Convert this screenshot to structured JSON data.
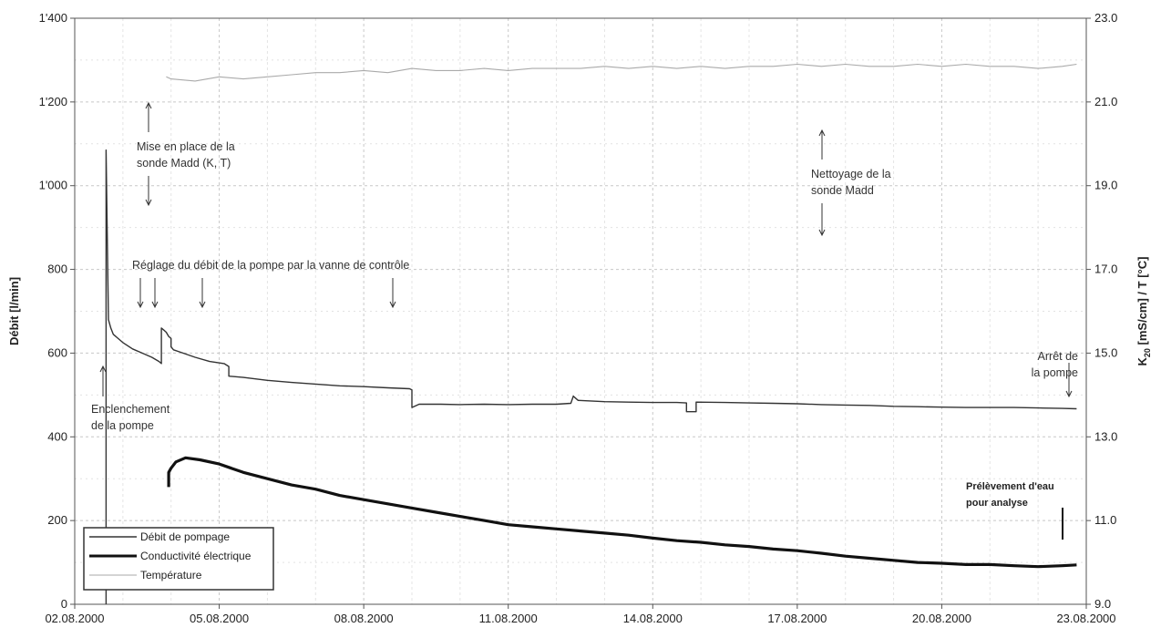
{
  "chart_data": {
    "type": "line",
    "x": {
      "ticks": [
        "02.08.2000",
        "05.08.2000",
        "08.08.2000",
        "11.08.2000",
        "14.08.2000",
        "17.08.2000",
        "20.08.2000",
        "23.08.2000"
      ],
      "tick_values": [
        0,
        3,
        6,
        9,
        12,
        15,
        18,
        21
      ],
      "range": [
        0,
        21
      ],
      "unit": "days"
    },
    "y_left": {
      "label": "Débit [l/min]",
      "range": [
        0,
        1400
      ],
      "ticks": [
        "0",
        "200",
        "400",
        "600",
        "800",
        "1'000",
        "1'200",
        "1'400"
      ],
      "tick_values": [
        0,
        200,
        400,
        600,
        800,
        1000,
        1200,
        1400
      ]
    },
    "y_right": {
      "label_main": "K",
      "label_sub": "20",
      "label_rest": " [mS/cm]  /  T [°C]",
      "range": [
        9,
        23
      ],
      "ticks": [
        "9.0",
        "11.0",
        "13.0",
        "15.0",
        "17.0",
        "19.0",
        "21.0",
        "23.0"
      ],
      "tick_values": [
        9,
        11,
        13,
        15,
        17,
        19,
        21,
        23
      ]
    },
    "grid": true,
    "series": [
      {
        "name": "Débit de pompage",
        "axis": "left",
        "color": "#333333",
        "points": [
          [
            0.65,
            0
          ],
          [
            0.65,
            1085
          ],
          [
            0.7,
            680
          ],
          [
            0.75,
            660
          ],
          [
            0.8,
            645
          ],
          [
            1.0,
            625
          ],
          [
            1.2,
            610
          ],
          [
            1.4,
            600
          ],
          [
            1.6,
            590
          ],
          [
            1.75,
            580
          ],
          [
            1.8,
            575
          ],
          [
            1.8,
            660
          ],
          [
            1.85,
            655
          ],
          [
            1.9,
            650
          ],
          [
            1.95,
            640
          ],
          [
            2.0,
            635
          ],
          [
            2.0,
            615
          ],
          [
            2.05,
            608
          ],
          [
            2.2,
            602
          ],
          [
            2.5,
            590
          ],
          [
            2.8,
            580
          ],
          [
            3.1,
            575
          ],
          [
            3.2,
            568
          ],
          [
            3.2,
            545
          ],
          [
            3.5,
            542
          ],
          [
            4,
            535
          ],
          [
            4.5,
            530
          ],
          [
            5,
            526
          ],
          [
            5.5,
            522
          ],
          [
            6,
            520
          ],
          [
            6.5,
            517
          ],
          [
            6.95,
            515
          ],
          [
            7.0,
            512
          ],
          [
            7.0,
            470
          ],
          [
            7.15,
            478
          ],
          [
            7.6,
            478
          ],
          [
            8,
            477
          ],
          [
            8.5,
            478
          ],
          [
            9,
            477
          ],
          [
            9.5,
            478
          ],
          [
            10,
            478
          ],
          [
            10.3,
            480
          ],
          [
            10.35,
            497
          ],
          [
            10.45,
            487
          ],
          [
            11,
            484
          ],
          [
            11.5,
            483
          ],
          [
            12,
            482
          ],
          [
            12.5,
            482
          ],
          [
            12.7,
            481
          ],
          [
            12.7,
            460
          ],
          [
            12.9,
            460
          ],
          [
            12.9,
            483
          ],
          [
            13.5,
            482
          ],
          [
            14,
            481
          ],
          [
            14.5,
            480
          ],
          [
            15,
            479
          ],
          [
            15.5,
            477
          ],
          [
            16,
            476
          ],
          [
            16.5,
            475
          ],
          [
            17,
            473
          ],
          [
            17.5,
            472
          ],
          [
            18,
            471
          ],
          [
            18.5,
            470
          ],
          [
            19,
            470
          ],
          [
            19.5,
            470
          ],
          [
            20,
            469
          ],
          [
            20.5,
            468
          ],
          [
            20.8,
            467
          ]
        ]
      },
      {
        "name": "Conductivité électrique",
        "axis": "right",
        "color": "#111111",
        "points": [
          [
            1.95,
            11.8
          ],
          [
            1.95,
            12.15
          ],
          [
            2.0,
            12.25
          ],
          [
            2.1,
            12.4
          ],
          [
            2.3,
            12.5
          ],
          [
            2.6,
            12.45
          ],
          [
            3.0,
            12.35
          ],
          [
            3.5,
            12.15
          ],
          [
            4.0,
            12.0
          ],
          [
            4.5,
            11.85
          ],
          [
            5,
            11.75
          ],
          [
            5.5,
            11.6
          ],
          [
            6,
            11.5
          ],
          [
            6.5,
            11.4
          ],
          [
            7,
            11.3
          ],
          [
            7.5,
            11.2
          ],
          [
            8,
            11.1
          ],
          [
            8.5,
            11.0
          ],
          [
            9,
            10.9
          ],
          [
            9.5,
            10.85
          ],
          [
            10,
            10.8
          ],
          [
            10.5,
            10.75
          ],
          [
            11,
            10.7
          ],
          [
            11.5,
            10.65
          ],
          [
            12,
            10.58
          ],
          [
            12.5,
            10.52
          ],
          [
            13,
            10.48
          ],
          [
            13.5,
            10.42
          ],
          [
            14,
            10.38
          ],
          [
            14.5,
            10.32
          ],
          [
            15,
            10.28
          ],
          [
            15.5,
            10.22
          ],
          [
            16,
            10.15
          ],
          [
            16.5,
            10.1
          ],
          [
            17,
            10.05
          ],
          [
            17.5,
            10.0
          ],
          [
            18,
            9.98
          ],
          [
            18.5,
            9.95
          ],
          [
            19,
            9.95
          ],
          [
            19.5,
            9.92
          ],
          [
            20,
            9.9
          ],
          [
            20.5,
            9.92
          ],
          [
            20.8,
            9.94
          ]
        ]
      },
      {
        "name": "Température",
        "axis": "right",
        "color": "#aaaaaa",
        "points": [
          [
            1.9,
            21.6
          ],
          [
            2.0,
            21.55
          ],
          [
            2.5,
            21.5
          ],
          [
            3.0,
            21.6
          ],
          [
            3.5,
            21.55
          ],
          [
            4.0,
            21.6
          ],
          [
            4.5,
            21.65
          ],
          [
            5.0,
            21.7
          ],
          [
            5.5,
            21.7
          ],
          [
            6,
            21.75
          ],
          [
            6.5,
            21.7
          ],
          [
            7,
            21.8
          ],
          [
            7.5,
            21.75
          ],
          [
            8,
            21.75
          ],
          [
            8.5,
            21.8
          ],
          [
            9,
            21.75
          ],
          [
            9.5,
            21.8
          ],
          [
            10,
            21.8
          ],
          [
            10.5,
            21.8
          ],
          [
            11,
            21.85
          ],
          [
            11.5,
            21.8
          ],
          [
            12,
            21.85
          ],
          [
            12.5,
            21.8
          ],
          [
            13,
            21.85
          ],
          [
            13.5,
            21.8
          ],
          [
            14,
            21.85
          ],
          [
            14.5,
            21.85
          ],
          [
            15,
            21.9
          ],
          [
            15.5,
            21.85
          ],
          [
            16,
            21.9
          ],
          [
            16.5,
            21.85
          ],
          [
            17,
            21.85
          ],
          [
            17.5,
            21.9
          ],
          [
            18,
            21.85
          ],
          [
            18.5,
            21.9
          ],
          [
            19,
            21.85
          ],
          [
            19.5,
            21.85
          ],
          [
            20,
            21.8
          ],
          [
            20.5,
            21.85
          ],
          [
            20.8,
            21.9
          ]
        ]
      }
    ],
    "legend": {
      "placement": "bottom-left",
      "entries": [
        "Débit de pompage",
        "Conductivité électrique",
        "Température"
      ]
    },
    "annotations": [
      {
        "lines": [
          "Mise en place de la",
          "sonde Madd (K, T)"
        ],
        "style": "normal"
      },
      {
        "lines": [
          "Nettoyage de la",
          "sonde Madd"
        ],
        "style": "normal"
      },
      {
        "lines": [
          "Réglage du débit de la pompe par la vanne de contrôle"
        ],
        "style": "normal"
      },
      {
        "lines": [
          "Enclenchement",
          "de la pompe"
        ],
        "style": "normal"
      },
      {
        "lines": [
          "Arrêt de",
          "la pompe"
        ],
        "style": "normal"
      },
      {
        "lines": [
          "Prélèvement d'eau",
          "pour analyse"
        ],
        "style": "bold"
      }
    ]
  }
}
